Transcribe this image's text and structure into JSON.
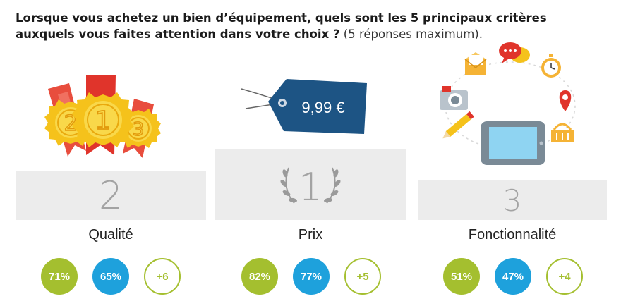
{
  "question": {
    "bold": "Lorsque vous achetez un bien d’équipement, quels sont les 5 principaux critères auxquels vous faites attention dans votre choix ?",
    "light": " (5 réponses maximum)."
  },
  "criteria": [
    {
      "rank": "2",
      "label": "Qualité",
      "pct_green": "71%",
      "pct_blue": "65%",
      "delta": "+6"
    },
    {
      "rank": "1",
      "label": "Prix",
      "pct_green": "82%",
      "pct_blue": "77%",
      "delta": "+5"
    },
    {
      "rank": "3",
      "label": "Fonctionnalité",
      "pct_green": "51%",
      "pct_blue": "47%",
      "delta": "+4"
    }
  ],
  "medals": [
    "2",
    "1",
    "3"
  ],
  "price_tag": "9,99 €",
  "colors": {
    "green": "#a4bf2f",
    "blue": "#1ea1dc",
    "navy": "#1d5484",
    "podium": "#ececec"
  }
}
